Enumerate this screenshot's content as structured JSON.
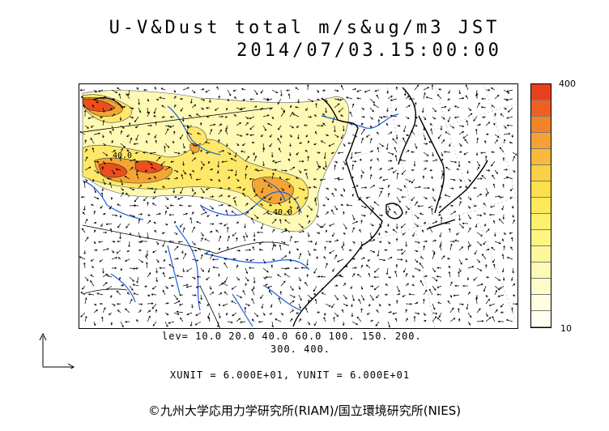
{
  "title": {
    "line1": "U-V&Dust total m/s&ug/m3 JST",
    "line2": "2014/07/03.15:00:00"
  },
  "legend": {
    "max_label": "400",
    "min_label": "10",
    "colors": [
      "#e8401c",
      "#ef5f1f",
      "#f28328",
      "#f7a034",
      "#f8b93c",
      "#fad044",
      "#fce04c",
      "#fdea5c",
      "#fdf06c",
      "#fef480",
      "#fef79a",
      "#fef9b4",
      "#fefbcb",
      "#fefde0",
      "#fffef0"
    ]
  },
  "levels": {
    "line1": "lev= 10.0 20.0 40.0 60.0 100. 150. 200.",
    "line2": "300. 400."
  },
  "units": "XUNIT = 6.000E+01, YUNIT = 6.000E+01",
  "contour_labels": [
    "40.0",
    "40.0"
  ],
  "copyright": "©九州大学応用力学研究所(RIAM)/国立環境研究所(NIES)",
  "colors": {
    "coast": "#000000",
    "rivers": "#1f5fe0",
    "grid": "#9a9a9a",
    "dust_high": "#e8401c",
    "dust_low": "#fef9b4"
  }
}
